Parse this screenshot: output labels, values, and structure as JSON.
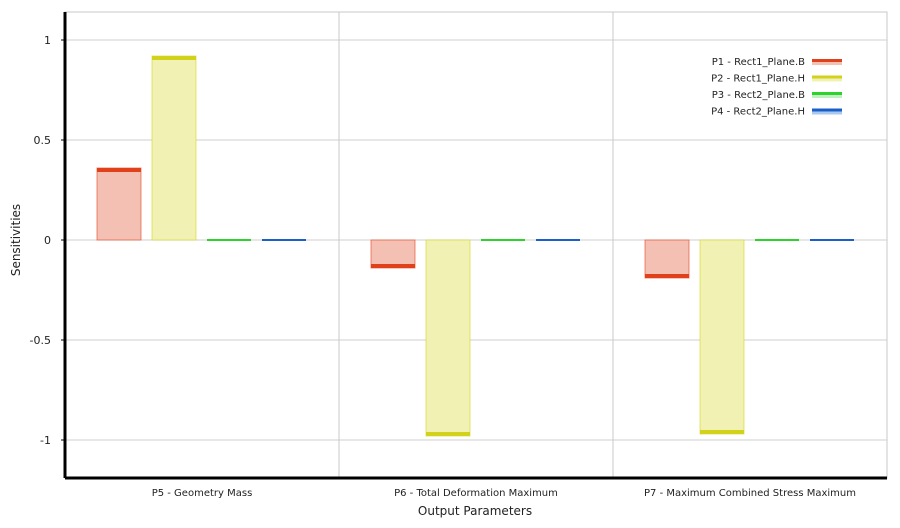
{
  "chart_data": {
    "type": "bar",
    "xlabel": "Output Parameters",
    "ylabel": "Sensitivities",
    "ylim": [
      -1.2,
      1.15
    ],
    "yticks": [
      1,
      0.5,
      0,
      -0.5,
      -1
    ],
    "ytick_labels": [
      "1",
      "0.5",
      "0",
      "-0.5",
      "-1"
    ],
    "grid": true,
    "legend_position": "top-right",
    "categories": [
      "P5 - Geometry Mass",
      "P6 - Total Deformation Maximum",
      "P7 - Maximum Combined Stress Maximum"
    ],
    "series": [
      {
        "name": "P1 - Rect1_Plane.B",
        "color": "#e0401a",
        "fill": "#f5c0b4",
        "values": [
          0.36,
          -0.14,
          -0.19
        ]
      },
      {
        "name": "P2 - Rect1_Plane.H",
        "color": "#d2d21c",
        "fill": "#f1f1b4",
        "values": [
          0.92,
          -0.98,
          -0.97
        ]
      },
      {
        "name": "P3 - Rect2_Plane.B",
        "color": "#2ed12e",
        "fill": "#c2f0c2",
        "values": [
          0.0,
          0.0,
          0.0
        ]
      },
      {
        "name": "P4 - Rect2_Plane.H",
        "color": "#1a5fc8",
        "fill": "#a8c8f0",
        "values": [
          0.0,
          0.0,
          0.0
        ]
      }
    ]
  }
}
